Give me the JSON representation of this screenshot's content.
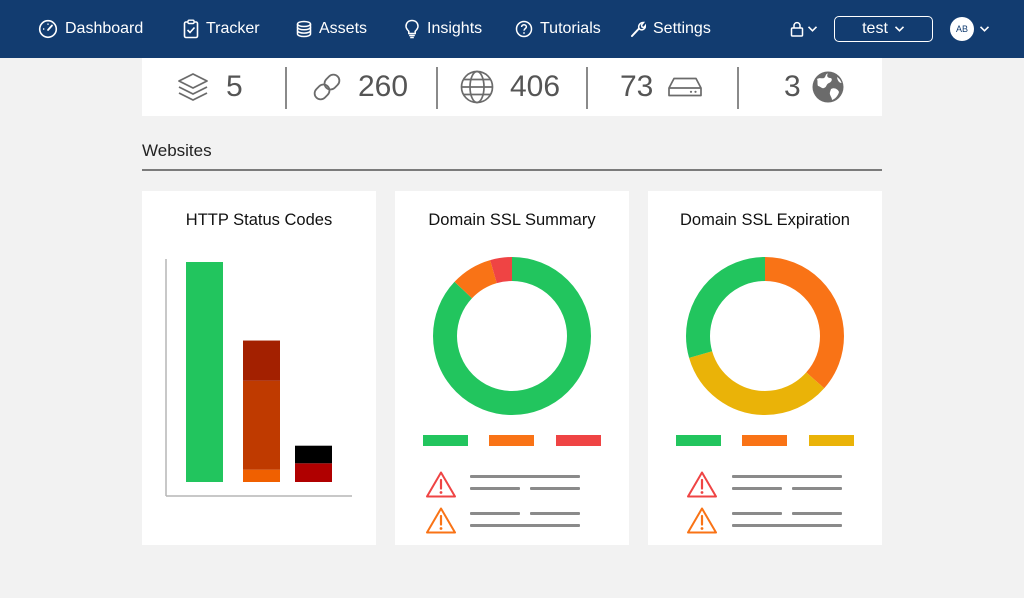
{
  "nav": {
    "items": [
      {
        "label": "Dashboard",
        "icon": "gauge-icon"
      },
      {
        "label": "Tracker",
        "icon": "clipboard-check-icon"
      },
      {
        "label": "Assets",
        "icon": "database-icon"
      },
      {
        "label": "Insights",
        "icon": "lightbulb-icon"
      },
      {
        "label": "Tutorials",
        "icon": "question-circle-icon"
      },
      {
        "label": "Settings",
        "icon": "wrench-icon"
      }
    ],
    "workspace_label": "test",
    "avatar_initials": "AB"
  },
  "stats": [
    {
      "value": "5",
      "icon": "layers-icon"
    },
    {
      "value": "260",
      "icon": "link-icon"
    },
    {
      "value": "406",
      "icon": "globe-icon"
    },
    {
      "value": "73",
      "icon": "server-icon"
    },
    {
      "value": "3",
      "icon": "earth-icon"
    }
  ],
  "section": {
    "title": "Websites"
  },
  "cards": {
    "http": {
      "title": "HTTP Status Codes"
    },
    "ssl_summary": {
      "title": "Domain SSL Summary"
    },
    "ssl_expiration": {
      "title": "Domain SSL Expiration"
    }
  },
  "colors": {
    "nav_bg": "#123c70",
    "green": "#22c55e",
    "orange": "#f97316",
    "red": "#ef4444",
    "yellow": "#eab308",
    "dark_red": "#a32000",
    "rust": "#bf3a00",
    "bright_orange": "#f06000",
    "black": "#000000",
    "crimson": "#b00000"
  },
  "chart_data": [
    {
      "type": "bar",
      "categories": [
        "",
        "",
        ""
      ],
      "series": [
        {
          "values": [
            100,
            0,
            0
          ],
          "color": "#22c55e"
        },
        {
          "values": [
            0,
            5.6,
            0
          ],
          "color": "#f06000"
        },
        {
          "values": [
            0,
            40.4,
            0
          ],
          "color": "#bf3a00"
        },
        {
          "values": [
            0,
            18.3,
            0
          ],
          "color": "#a32000"
        },
        {
          "values": [
            0,
            0,
            8.5
          ],
          "color": "#b00000"
        },
        {
          "values": [
            0,
            0,
            8.0
          ],
          "color": "#000000"
        }
      ],
      "ylim": [
        0,
        100
      ]
    },
    {
      "type": "pie",
      "donut": true,
      "slices": [
        {
          "value": 87,
          "color": "#22c55e"
        },
        {
          "value": 8.5,
          "color": "#f97316"
        },
        {
          "value": 4.5,
          "color": "#ef4444"
        }
      ],
      "legend": [
        "#22c55e",
        "#f97316",
        "#ef4444"
      ]
    },
    {
      "type": "pie",
      "donut": true,
      "slices": [
        {
          "value": 36.5,
          "color": "#f97316"
        },
        {
          "value": 34,
          "color": "#eab308"
        },
        {
          "value": 29.5,
          "color": "#22c55e"
        }
      ],
      "legend": [
        "#22c55e",
        "#f97316",
        "#eab308"
      ]
    }
  ]
}
